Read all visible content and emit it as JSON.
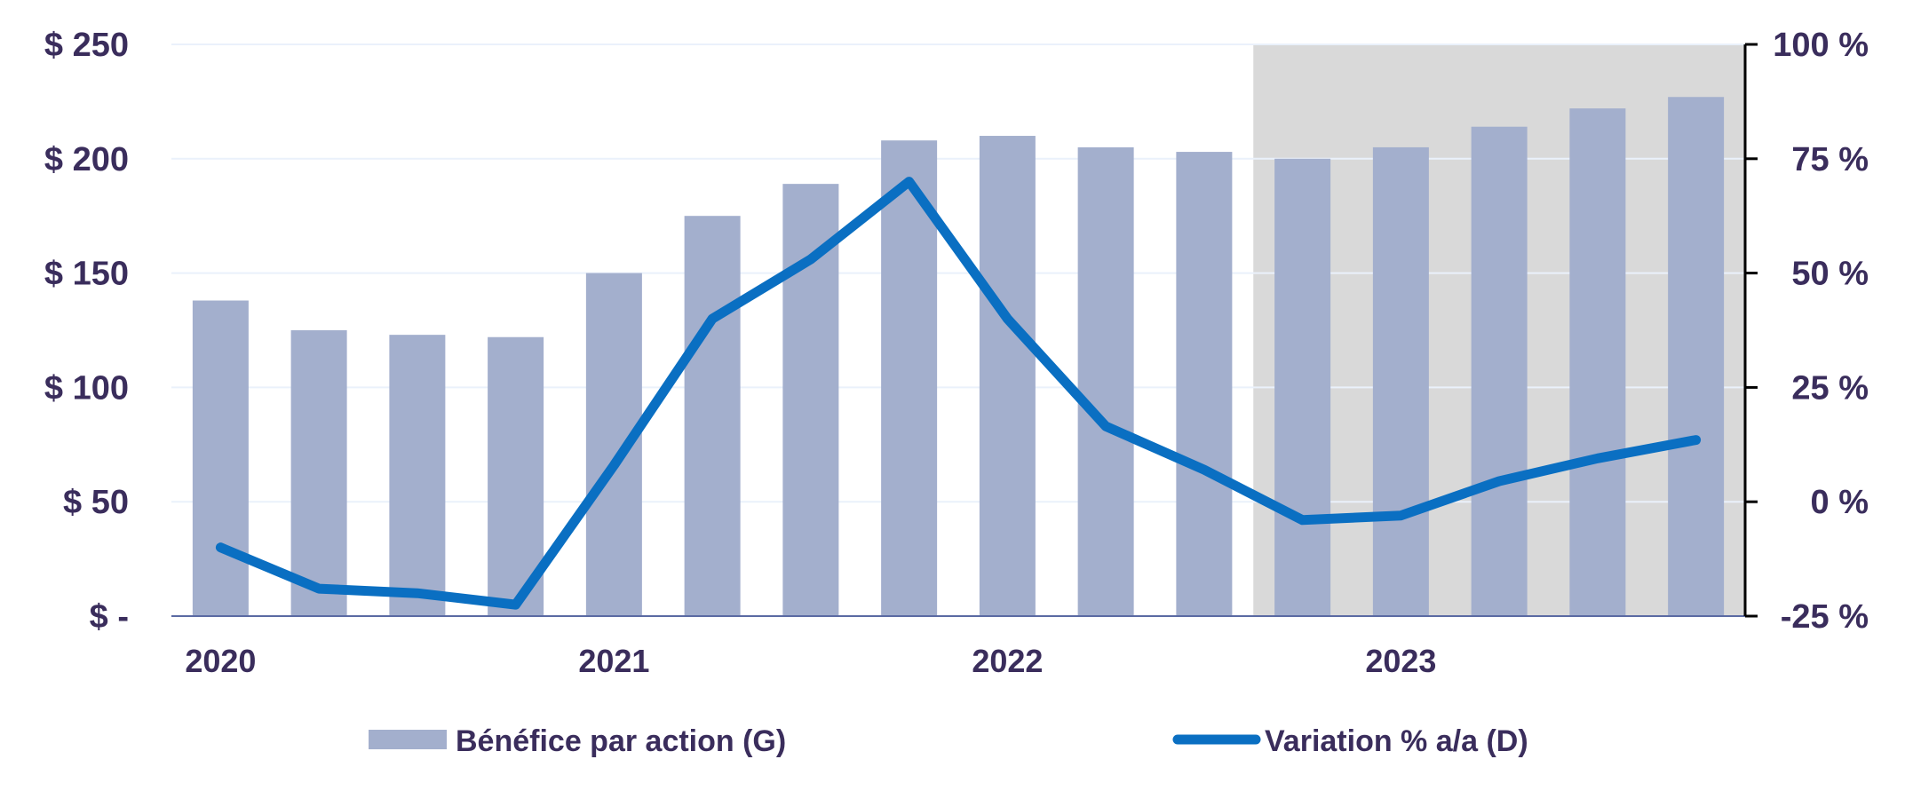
{
  "chart_data": {
    "type": "bar",
    "x_categories": [
      "2020",
      "",
      "",
      "",
      "2021",
      "",
      "",
      "",
      "2022",
      "",
      "",
      "",
      "2023",
      "",
      "",
      ""
    ],
    "year_labels": [
      "2020",
      "2021",
      "2022",
      "2023"
    ],
    "series": [
      {
        "name": "Bénéfice par action (G)",
        "type": "bar",
        "axis": "left",
        "color": "#a3afcd",
        "values": [
          138,
          125,
          123,
          122,
          150,
          175,
          189,
          208,
          210,
          205,
          203,
          200,
          205,
          214,
          222,
          227
        ]
      },
      {
        "name": "Variation % a/a (D)",
        "type": "line",
        "axis": "right",
        "color": "#0a6fc2",
        "values": [
          -10,
          -19,
          -20,
          -22.5,
          8,
          40,
          53,
          70,
          40,
          16.5,
          7,
          -4,
          -3,
          4.5,
          9.5,
          13.5
        ]
      }
    ],
    "y_left": {
      "range": [
        0,
        250
      ],
      "ticks": [
        0,
        50,
        100,
        150,
        200,
        250
      ],
      "tick_labels": [
        "$ -",
        "$ 50",
        "$ 100",
        "$ 150",
        "$ 200",
        "$ 250"
      ]
    },
    "y_right": {
      "range": [
        -25,
        100
      ],
      "ticks": [
        -25,
        0,
        25,
        50,
        75,
        100
      ],
      "tick_labels": [
        "-25 %",
        "0 %",
        "25 %",
        "50 %",
        "75 %",
        "100 %"
      ]
    },
    "shaded_region": {
      "from_index": 11,
      "to_index": 15,
      "color": "#d9d9d9"
    },
    "grid": true,
    "legend_placement": "bottom",
    "text_color": "#3a2d5c",
    "gridline_color": "#eaf1fb",
    "axis_color": "#5b6aa3"
  }
}
